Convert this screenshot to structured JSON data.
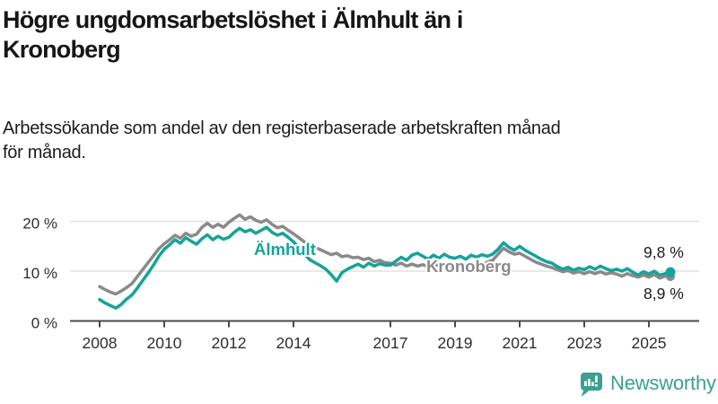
{
  "header": {
    "title_line1": "Högre ungdomsarbetslöshet i Älmhult än i",
    "title_line2": "Kronoberg",
    "subtitle_line1": "Arbetssökande som andel av den registerbaserade arbetskraften månad",
    "subtitle_line2": "för månad."
  },
  "chart_data": {
    "type": "line",
    "title": "",
    "xlabel": "",
    "ylabel": "",
    "unit": "%",
    "grid": "horizontal-only",
    "x_unit": "year",
    "x_start": 2008.0,
    "x_step_years": 0.166667,
    "x_end": 2025.667,
    "ylim": [
      0,
      22
    ],
    "xlim": [
      2007.1,
      2026.6
    ],
    "yticks": [
      {
        "value": 0,
        "label": "0 %"
      },
      {
        "value": 10,
        "label": "10 %"
      },
      {
        "value": 20,
        "label": "20 %"
      }
    ],
    "xticks": [
      {
        "value": 2008,
        "label": "2008"
      },
      {
        "value": 2010,
        "label": "2010"
      },
      {
        "value": 2012,
        "label": "2012"
      },
      {
        "value": 2014,
        "label": "2014"
      },
      {
        "value": 2017,
        "label": "2017"
      },
      {
        "value": 2019,
        "label": "2019"
      },
      {
        "value": 2021,
        "label": "2021"
      },
      {
        "value": 2023,
        "label": "2023"
      },
      {
        "value": 2025,
        "label": "2025"
      }
    ],
    "series": [
      {
        "name": "Kronoberg",
        "color": "#8a8a8a",
        "end_label": "8,9 %",
        "end_value": 8.9,
        "values": [
          6.9,
          6.3,
          5.8,
          5.4,
          6.0,
          6.7,
          7.5,
          8.9,
          10.3,
          11.7,
          13.1,
          14.5,
          15.5,
          16.3,
          17.2,
          16.6,
          17.6,
          17.0,
          17.4,
          18.8,
          19.6,
          18.8,
          19.4,
          18.8,
          19.8,
          20.6,
          21.3,
          20.4,
          20.9,
          20.2,
          19.8,
          20.3,
          19.4,
          18.7,
          19.0,
          18.2,
          17.5,
          16.7,
          15.9,
          15.3,
          14.8,
          14.3,
          13.8,
          13.3,
          13.6,
          12.9,
          13.1,
          12.7,
          12.8,
          12.3,
          12.6,
          11.9,
          12.2,
          11.7,
          11.6,
          11.2,
          11.6,
          11.0,
          11.4,
          11.0,
          11.3,
          10.9,
          11.5,
          11.0,
          11.4,
          11.0,
          11.3,
          10.9,
          11.3,
          11.1,
          11.5,
          11.2,
          11.8,
          12.2,
          13.4,
          14.6,
          13.9,
          13.4,
          13.6,
          13.0,
          12.4,
          11.8,
          11.4,
          11.0,
          10.7,
          10.3,
          9.9,
          10.1,
          9.6,
          9.9,
          9.5,
          9.9,
          9.5,
          9.9,
          9.4,
          9.7,
          9.4,
          9.0,
          9.5,
          9.1,
          8.8,
          9.2,
          8.8,
          9.3,
          8.6,
          9.0,
          8.9
        ]
      },
      {
        "name": "Älmhult",
        "color": "#15a39a",
        "end_label": "9,8 %",
        "end_value": 9.8,
        "values": [
          4.3,
          3.6,
          3.1,
          2.6,
          3.3,
          4.4,
          5.2,
          6.6,
          8.1,
          9.6,
          11.2,
          13.0,
          14.4,
          15.3,
          16.3,
          15.6,
          16.7,
          16.0,
          15.4,
          16.5,
          17.3,
          16.3,
          17.0,
          16.4,
          16.8,
          17.8,
          18.6,
          17.9,
          18.3,
          17.6,
          18.2,
          18.8,
          17.8,
          17.2,
          17.6,
          16.8,
          15.9,
          14.7,
          13.5,
          12.3,
          11.7,
          11.1,
          10.4,
          9.3,
          8.0,
          9.7,
          10.4,
          10.9,
          11.4,
          10.8,
          11.6,
          11.0,
          11.5,
          11.2,
          11.2,
          12.0,
          12.8,
          12.2,
          13.2,
          13.6,
          13.0,
          12.4,
          13.2,
          12.6,
          13.4,
          12.8,
          12.6,
          13.0,
          12.4,
          13.2,
          12.8,
          13.3,
          13.0,
          13.4,
          14.4,
          15.7,
          14.8,
          14.2,
          15.0,
          14.2,
          13.6,
          13.0,
          12.4,
          11.9,
          11.6,
          10.9,
          10.4,
          10.8,
          10.2,
          10.6,
          10.3,
          10.9,
          10.4,
          11.0,
          10.5,
          10.1,
          10.4,
          10.0,
          10.5,
          9.8,
          9.2,
          9.9,
          9.4,
          10.0,
          9.2,
          9.5,
          9.8
        ]
      }
    ]
  },
  "styles": {
    "axis_color": "#4a4a4a",
    "gridline_color": "#dcdcdc",
    "tick_label_color": "#2e2e2e",
    "end_label_color": "#1a1a1a"
  },
  "footer": {
    "brand": "Newsworthy",
    "brand_color": "#3aa08f"
  }
}
